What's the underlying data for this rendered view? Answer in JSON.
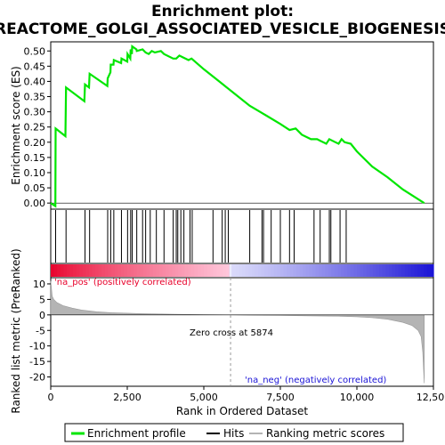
{
  "title_line1": "Enrichment plot:",
  "title_line2": "REACTOME_GOLGI_ASSOCIATED_VESICLE_BIOGENESIS",
  "colors": {
    "enrichment": "#00e600",
    "positive": "#e8002a",
    "negative": "#1a13d6",
    "metric_fill": "#b4b4b4",
    "zero_line": "#999999"
  },
  "chart_data": [
    {
      "panel": "enrichment",
      "type": "line",
      "ylabel": "Enrichment score (ES)",
      "ylim": [
        -0.02,
        0.53
      ],
      "yticks": [
        "0.00",
        "0.05",
        "0.10",
        "0.15",
        "0.20",
        "0.25",
        "0.30",
        "0.35",
        "0.40",
        "0.45",
        "0.50"
      ],
      "xlim": [
        0,
        12500
      ],
      "series": [
        {
          "name": "Enrichment profile",
          "x": [
            0,
            150,
            160,
            480,
            500,
            1100,
            1120,
            1250,
            1270,
            1850,
            1860,
            1950,
            1960,
            2050,
            2060,
            2300,
            2310,
            2500,
            2510,
            2600,
            2610,
            2650,
            2660,
            2800,
            2810,
            3000,
            3100,
            3200,
            3300,
            3400,
            3600,
            3700,
            4000,
            4100,
            4200,
            4300,
            4500,
            4600,
            5000,
            5500,
            6000,
            6500,
            7000,
            7500,
            7800,
            8000,
            8200,
            8500,
            8700,
            8800,
            9000,
            9100,
            9300,
            9400,
            9500,
            9600,
            9800,
            10000,
            10500,
            11000,
            11500,
            12200
          ],
          "y": [
            0.0,
            -0.01,
            0.245,
            0.22,
            0.38,
            0.335,
            0.39,
            0.38,
            0.425,
            0.385,
            0.41,
            0.43,
            0.455,
            0.455,
            0.47,
            0.46,
            0.475,
            0.465,
            0.49,
            0.475,
            0.505,
            0.49,
            0.515,
            0.505,
            0.5,
            0.505,
            0.495,
            0.49,
            0.5,
            0.495,
            0.5,
            0.49,
            0.475,
            0.475,
            0.485,
            0.48,
            0.47,
            0.475,
            0.44,
            0.4,
            0.36,
            0.32,
            0.29,
            0.26,
            0.24,
            0.245,
            0.225,
            0.21,
            0.21,
            0.205,
            0.195,
            0.21,
            0.2,
            0.195,
            0.21,
            0.2,
            0.195,
            0.17,
            0.12,
            0.085,
            0.045,
            0.0
          ]
        }
      ]
    },
    {
      "panel": "hits",
      "type": "scatter",
      "series_name": "Hits",
      "x": [
        160,
        500,
        1120,
        1270,
        1860,
        1960,
        2060,
        2310,
        2510,
        2610,
        2660,
        2810,
        3000,
        3100,
        3250,
        3450,
        3700,
        4000,
        4100,
        4150,
        4250,
        4350,
        4550,
        4620,
        5300,
        5600,
        5700,
        5800,
        6500,
        6900,
        6950,
        7200,
        7500,
        7800,
        7950,
        8600,
        8800,
        9100,
        9150,
        9450,
        9650
      ]
    },
    {
      "panel": "ranked_list",
      "type": "area",
      "ylabel": "Ranked list metric (PreRanked)",
      "xlabel": "Rank in Ordered Dataset",
      "ylim": [
        -23,
        12
      ],
      "yticks": [
        "10",
        "5",
        "0",
        "-5",
        "-10",
        "-15",
        "-20"
      ],
      "xticks": [
        "0",
        "2,500",
        "5,000",
        "7,500",
        "10,000",
        "12,500"
      ],
      "x": [
        0,
        50,
        100,
        200,
        400,
        700,
        1000,
        1500,
        2000,
        3000,
        4000,
        5000,
        5874,
        6500,
        7500,
        8500,
        9500,
        10000,
        10500,
        11000,
        11500,
        11800,
        12000,
        12100,
        12150,
        12200
      ],
      "y": [
        11,
        6,
        5,
        4,
        3,
        2.2,
        1.6,
        1.0,
        0.7,
        0.4,
        0.2,
        0.1,
        0,
        -0.1,
        -0.2,
        -0.3,
        -0.45,
        -0.6,
        -0.9,
        -1.4,
        -2.4,
        -3.4,
        -5,
        -7,
        -12,
        -22
      ],
      "zero_cross_label": "Zero cross at 5874",
      "zero_cross": 5874,
      "pos_label": "'na_pos' (positively correlated)",
      "neg_label": "'na_neg' (negatively correlated)"
    }
  ],
  "legend": {
    "items": [
      {
        "label": "Enrichment profile"
      },
      {
        "label": "Hits"
      },
      {
        "label": "Ranking metric scores"
      }
    ]
  }
}
